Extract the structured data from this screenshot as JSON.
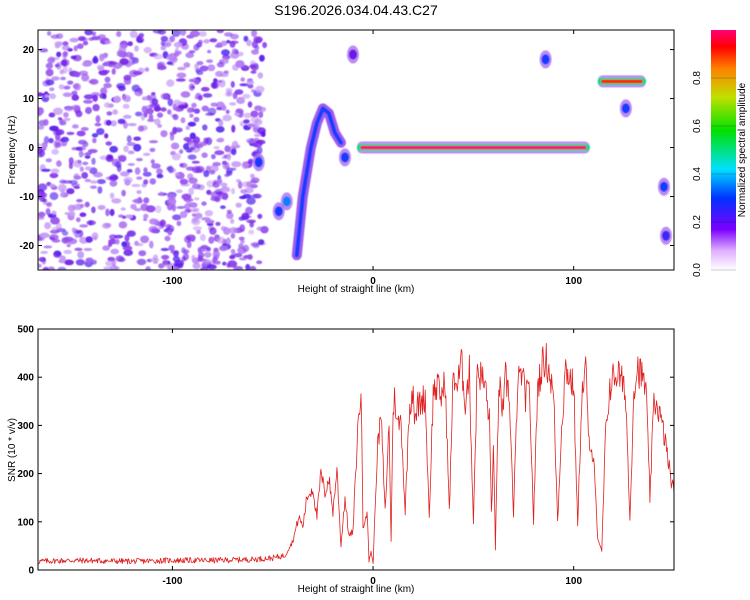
{
  "title": "S196.2026.034.04.43.C27",
  "colors": {
    "snr_line": "#e02020",
    "spectrogram_low": "#8a2be2",
    "spectrogram_mid": "#00cc44",
    "spectrogram_high": "#ff1a4a",
    "frame": "#000000"
  },
  "colorbar": {
    "label": "Normalized spectral amplitude",
    "tick_labels": [
      "0.0",
      "0.2",
      "0.4",
      "0.6",
      "0.8"
    ]
  },
  "chart_data": [
    {
      "type": "heatmap",
      "title": "S196.2026.034.04.43.C27",
      "xlabel": "Height of straight line (km)",
      "ylabel": "Frequency (Hz)",
      "xlim": [
        -167,
        150
      ],
      "ylim": [
        -25,
        24
      ],
      "x_ticks": [
        -100,
        0,
        100
      ],
      "x_tick_labels": [
        "-100",
        "0",
        "100"
      ],
      "y_ticks": [
        -20,
        -10,
        0,
        10,
        20
      ],
      "y_tick_labels": [
        "-20",
        "-10",
        "0",
        "10",
        "20"
      ],
      "colorscale_range": [
        0,
        1
      ],
      "features": [
        {
          "kind": "noise",
          "x_range": [
            -167,
            -54
          ],
          "freq_range": [
            -25,
            24
          ],
          "amplitude": 0.15
        },
        {
          "kind": "blob",
          "x": -57,
          "freq": -3,
          "amplitude": 0.3
        },
        {
          "kind": "blob",
          "x": -47,
          "freq": -13,
          "amplitude": 0.3
        },
        {
          "kind": "blob",
          "x": -43,
          "freq": -11,
          "amplitude": 0.35
        },
        {
          "kind": "curve",
          "points": [
            [
              -38,
              -22
            ],
            [
              -35,
              -10
            ],
            [
              -31,
              0
            ],
            [
              -28,
              5
            ],
            [
              -25,
              8
            ],
            [
              -22,
              7
            ],
            [
              -19,
              3
            ],
            [
              -16,
              1
            ]
          ],
          "amplitude": 0.3
        },
        {
          "kind": "blob",
          "x": -14,
          "freq": -2,
          "amplitude": 0.3
        },
        {
          "kind": "blob",
          "x": -10,
          "freq": 19,
          "amplitude": 0.2
        },
        {
          "kind": "tone",
          "x_range": [
            -8,
            108
          ],
          "freq": 0,
          "amplitude": 1.0
        },
        {
          "kind": "blob",
          "x": 86,
          "freq": 18,
          "amplitude": 0.3
        },
        {
          "kind": "tone",
          "x_range": [
            112,
            136
          ],
          "freq": 13.5,
          "amplitude": 0.9
        },
        {
          "kind": "blob",
          "x": 126,
          "freq": 8,
          "amplitude": 0.3
        },
        {
          "kind": "blob",
          "x": 145,
          "freq": -8,
          "amplitude": 0.3
        },
        {
          "kind": "blob",
          "x": 146,
          "freq": -18,
          "amplitude": 0.25
        }
      ]
    },
    {
      "type": "line",
      "xlabel": "Height of straight line (km)",
      "ylabel": "SNR (10 * v/v)",
      "xlim": [
        -167,
        150
      ],
      "ylim": [
        0,
        500
      ],
      "x_ticks": [
        -100,
        0,
        100
      ],
      "x_tick_labels": [
        "-100",
        "0",
        "100"
      ],
      "y_ticks": [
        0,
        100,
        200,
        300,
        400,
        500
      ],
      "y_tick_labels": [
        "0",
        "100",
        "200",
        "300",
        "400",
        "500"
      ],
      "series": [
        {
          "color": "#e02020",
          "x": [
            -167,
            -150,
            -120,
            -100,
            -80,
            -60,
            -50,
            -44,
            -40,
            -37,
            -35,
            -33,
            -30,
            -28,
            -26,
            -24,
            -22,
            -20,
            -18,
            -16,
            -14,
            -12,
            -10,
            -8,
            -7,
            -6,
            -5,
            -4,
            -3,
            -2,
            -1,
            0,
            2,
            4,
            6,
            8,
            9,
            10,
            11,
            12,
            14,
            16,
            18,
            19,
            20,
            21,
            22,
            24,
            26,
            28,
            30,
            32,
            34,
            36,
            38,
            40,
            42,
            44,
            46,
            48,
            50,
            52,
            54,
            56,
            58,
            59,
            60,
            61,
            62,
            63,
            64,
            65,
            66,
            68,
            70,
            72,
            74,
            76,
            78,
            80,
            82,
            84,
            86,
            88,
            90,
            92,
            94,
            96,
            98,
            100,
            102,
            104,
            106,
            108,
            110,
            112,
            114,
            116,
            118,
            120,
            122,
            124,
            126,
            128,
            130,
            132,
            134,
            136,
            138,
            140,
            142,
            144,
            146,
            148,
            150
          ],
          "y": [
            18,
            20,
            18,
            20,
            20,
            22,
            25,
            30,
            60,
            110,
            90,
            150,
            170,
            110,
            200,
            160,
            190,
            120,
            210,
            50,
            150,
            70,
            80,
            260,
            330,
            370,
            90,
            110,
            120,
            20,
            40,
            10,
            240,
            320,
            120,
            300,
            60,
            340,
            360,
            300,
            310,
            120,
            330,
            360,
            380,
            300,
            340,
            350,
            360,
            110,
            370,
            380,
            360,
            390,
            120,
            410,
            380,
            430,
            350,
            410,
            100,
            420,
            400,
            380,
            310,
            120,
            250,
            40,
            280,
            380,
            350,
            320,
            400,
            360,
            110,
            380,
            410,
            360,
            370,
            100,
            380,
            420,
            440,
            410,
            360,
            100,
            300,
            420,
            400,
            380,
            90,
            360,
            420,
            230,
            250,
            60,
            40,
            290,
            380,
            400,
            410,
            390,
            360,
            100,
            380,
            420,
            400,
            380,
            150,
            350,
            340,
            300,
            260,
            200,
            160
          ]
        }
      ]
    }
  ]
}
